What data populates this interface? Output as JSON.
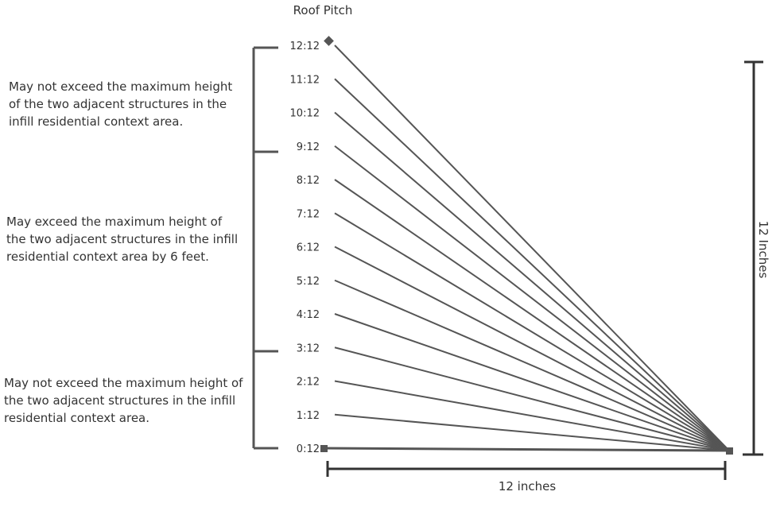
{
  "title": "Roof Pitch",
  "pitch_labels": [
    "12:12",
    "11:12",
    "10:12",
    "9:12",
    "8:12",
    "7:12",
    "6:12",
    "5:12",
    "4:12",
    "3:12",
    "2:12",
    "1:12",
    "0:12"
  ],
  "zones": [
    {
      "text": "May not exceed the maximum height of the two adjacent structures in the infill residential context area."
    },
    {
      "text": "May exceed the maximum height of the two adjacent structures in the infill residential context area by 6 feet."
    },
    {
      "text": "May not exceed the maximum height of the two adjacent structures in the infill residential context area."
    }
  ],
  "dimensions": {
    "horizontal": "12 inches",
    "vertical": "12 Inches"
  },
  "colors": {
    "line": "#555555",
    "text": "#333333",
    "marker": "#555555"
  }
}
